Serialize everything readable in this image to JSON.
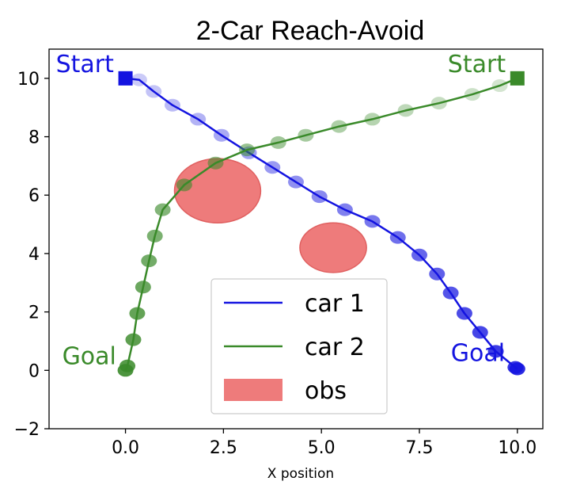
{
  "colors": {
    "car1": "#1414e0",
    "car2": "#3a8a2a",
    "obs_fill": "#ee7b7b",
    "obs_edge": "#e06060"
  },
  "chart_data": {
    "type": "line",
    "title": "2-Car Reach-Avoid",
    "xlabel": "X position",
    "ylabel": "",
    "xlim": [
      -1.95,
      10.65
    ],
    "ylim": [
      -2,
      11
    ],
    "xticks": [
      0.0,
      2.5,
      5.0,
      7.5,
      10.0
    ],
    "xtick_labels": [
      "0.0",
      "2.5",
      "5.0",
      "7.5",
      "10.0"
    ],
    "yticks": [
      -2,
      0,
      2,
      4,
      6,
      8,
      10
    ],
    "ytick_labels": [
      "−2",
      "0",
      "2",
      "4",
      "6",
      "8",
      "10"
    ],
    "grid": false,
    "legend_position": "lower center",
    "series": [
      {
        "name": "car 1",
        "color_key": "car1",
        "points": [
          [
            0.0,
            10.0
          ],
          [
            0.35,
            9.95
          ],
          [
            0.72,
            9.55
          ],
          [
            1.2,
            9.08
          ],
          [
            1.85,
            8.6
          ],
          [
            2.45,
            8.05
          ],
          [
            3.15,
            7.45
          ],
          [
            3.75,
            6.95
          ],
          [
            4.35,
            6.45
          ],
          [
            4.95,
            5.95
          ],
          [
            5.6,
            5.5
          ],
          [
            6.3,
            5.1
          ],
          [
            6.95,
            4.55
          ],
          [
            7.5,
            3.95
          ],
          [
            7.95,
            3.3
          ],
          [
            8.3,
            2.65
          ],
          [
            8.65,
            1.95
          ],
          [
            9.05,
            1.3
          ],
          [
            9.45,
            0.65
          ],
          [
            9.95,
            0.1
          ],
          [
            10.0,
            0.05
          ]
        ],
        "start_label": "Start",
        "goal_label": "Goal"
      },
      {
        "name": "car 2",
        "color_key": "car2",
        "points": [
          [
            10.0,
            10.0
          ],
          [
            9.55,
            9.75
          ],
          [
            8.85,
            9.45
          ],
          [
            8.0,
            9.15
          ],
          [
            7.15,
            8.9
          ],
          [
            6.3,
            8.6
          ],
          [
            5.45,
            8.35
          ],
          [
            4.6,
            8.05
          ],
          [
            3.9,
            7.8
          ],
          [
            3.1,
            7.55
          ],
          [
            2.3,
            7.1
          ],
          [
            1.5,
            6.35
          ],
          [
            0.95,
            5.5
          ],
          [
            0.75,
            4.6
          ],
          [
            0.6,
            3.75
          ],
          [
            0.45,
            2.85
          ],
          [
            0.3,
            1.95
          ],
          [
            0.2,
            1.05
          ],
          [
            0.05,
            0.15
          ],
          [
            0.0,
            0.0
          ]
        ],
        "start_label": "Start",
        "goal_label": "Goal"
      }
    ],
    "obstacles": [
      {
        "cx": 2.35,
        "cy": 6.15,
        "rx": 1.1,
        "ry": 1.1
      },
      {
        "cx": 5.3,
        "cy": 4.2,
        "rx": 0.85,
        "ry": 0.85
      }
    ],
    "legend": [
      {
        "label": "car 1",
        "kind": "line",
        "color_key": "car1"
      },
      {
        "label": "car 2",
        "kind": "line",
        "color_key": "car2"
      },
      {
        "label": "obs",
        "kind": "patch",
        "color_key": "obs_fill"
      }
    ]
  }
}
